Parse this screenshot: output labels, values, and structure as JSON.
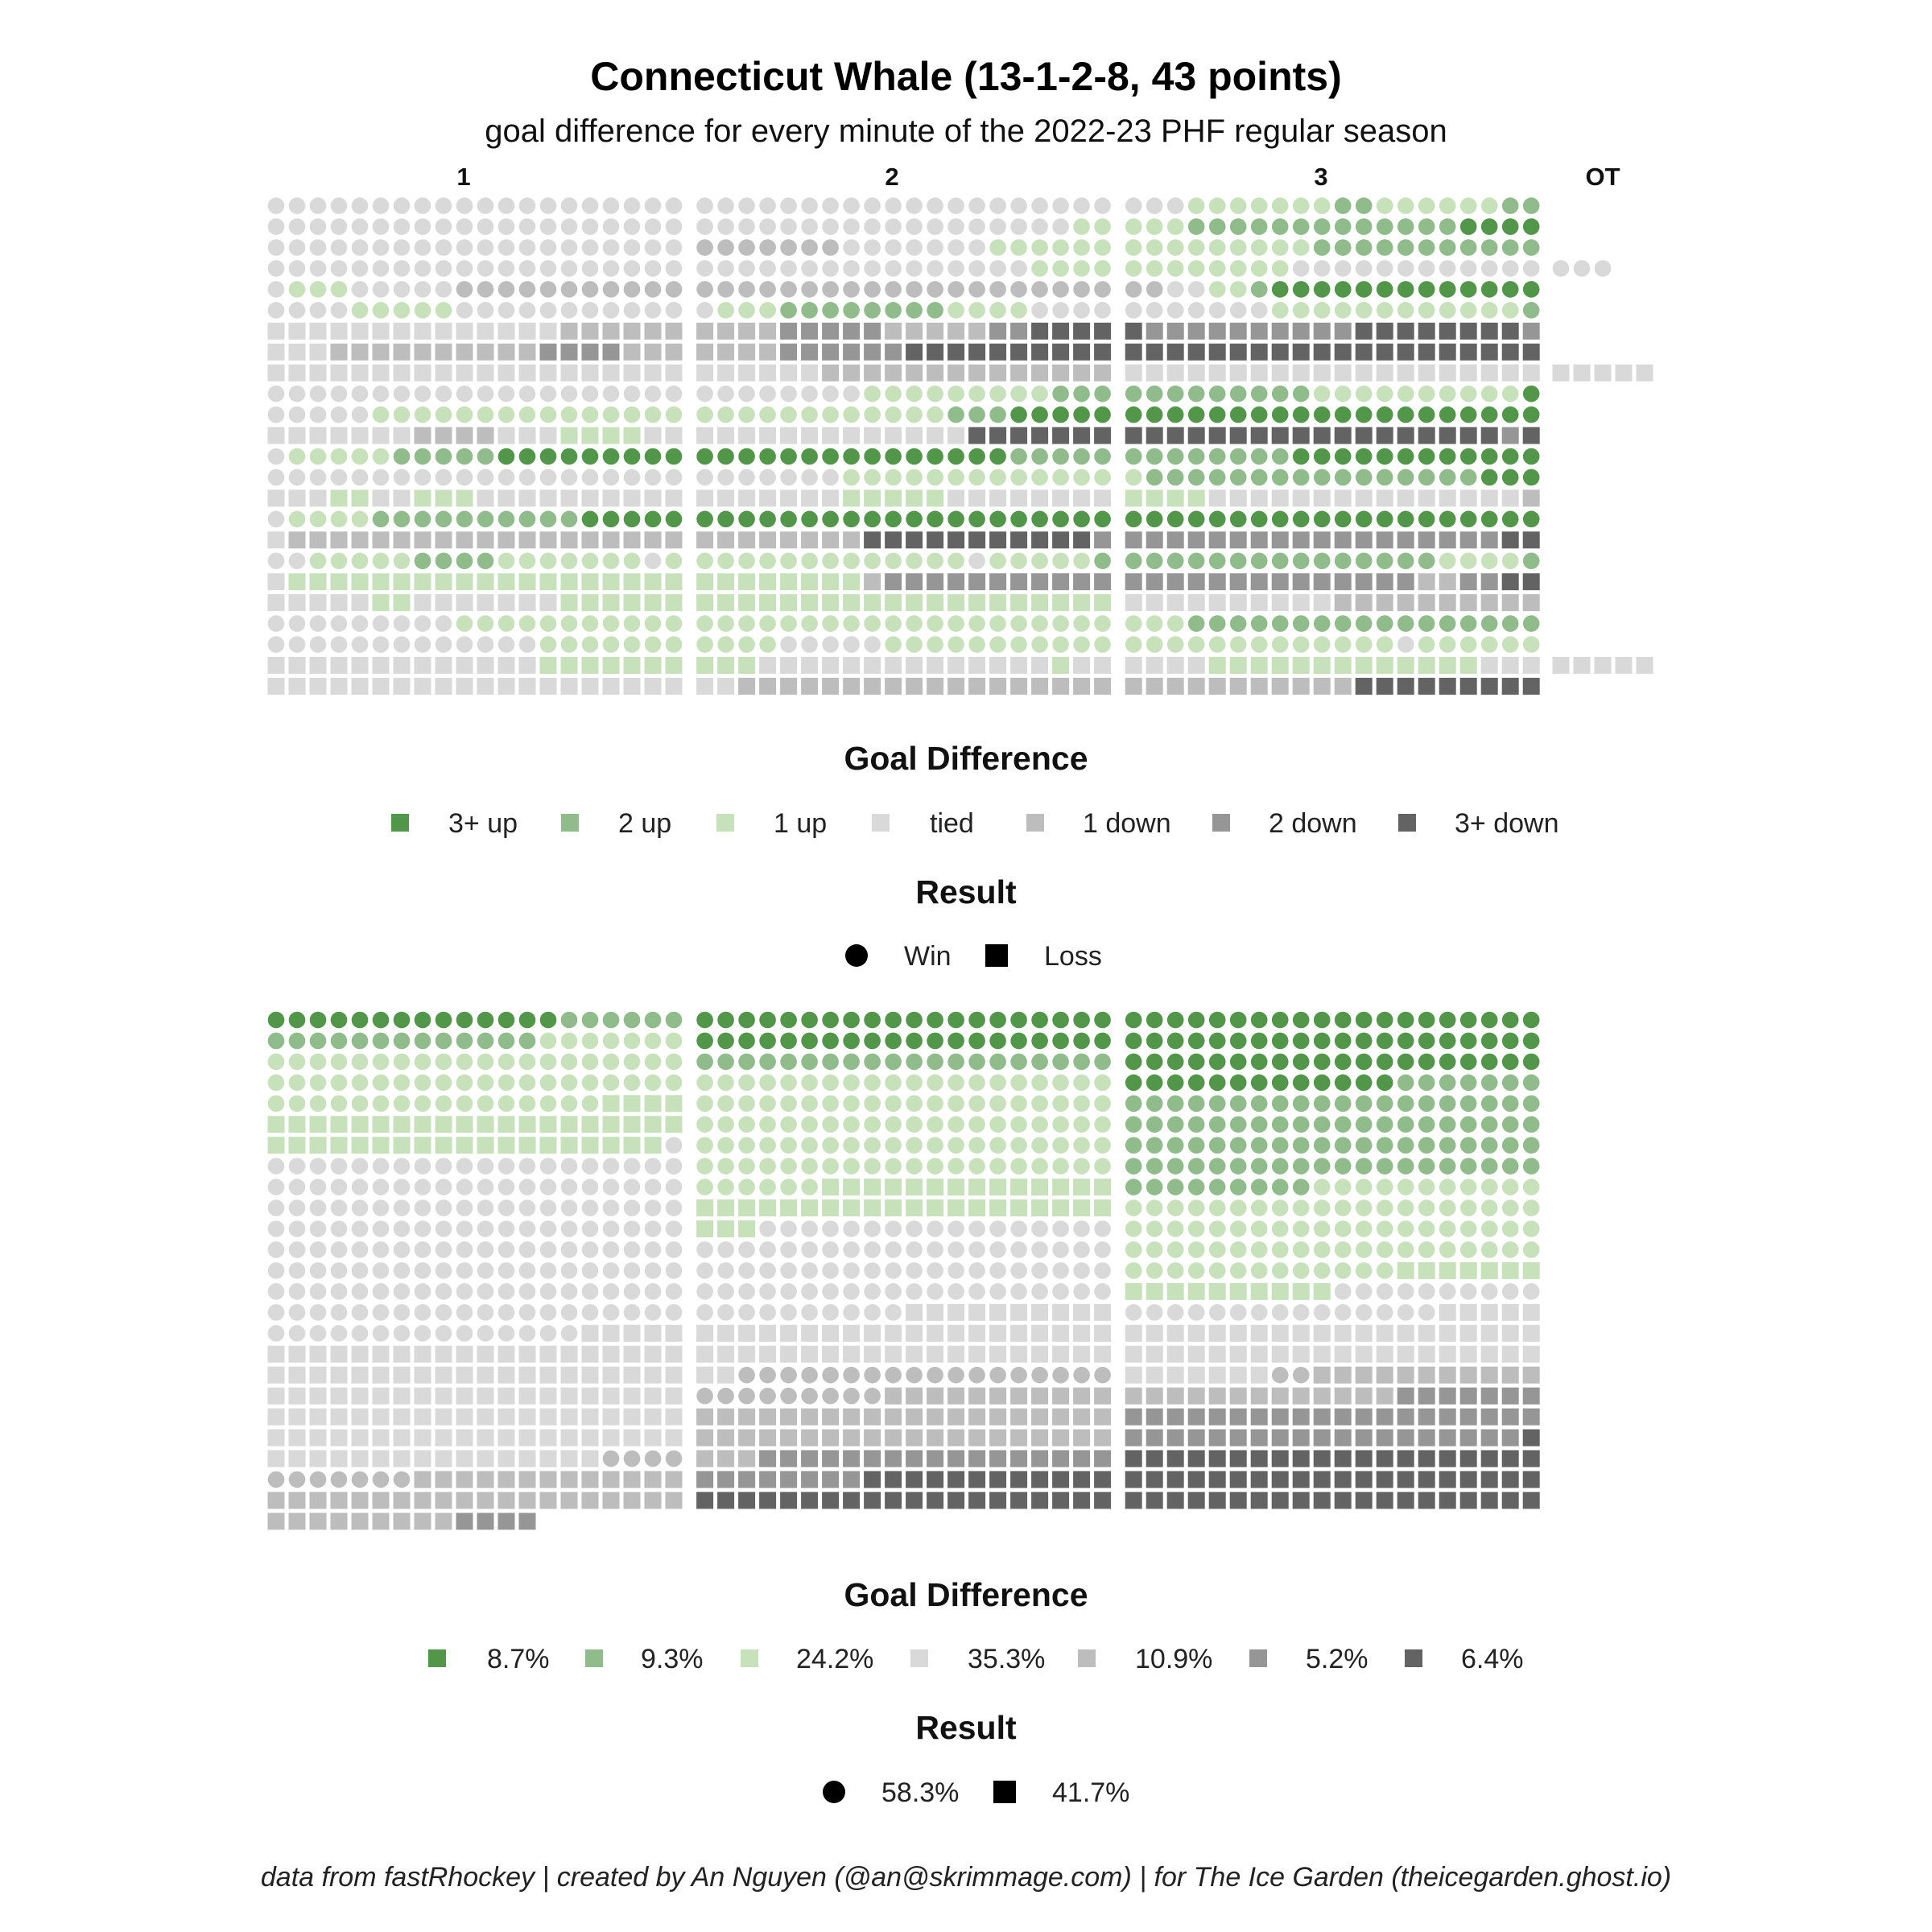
{
  "chart_data": {
    "type": "waffle",
    "title": "Connecticut Whale (13-1-2-8, 43 points)",
    "subtitle": "goal difference for every minute of the 2022-23 PHF regular season",
    "periods": [
      "1",
      "2",
      "3",
      "OT"
    ],
    "state_codes": {
      "A": "3+ up",
      "B": "2 up",
      "C": "1 up",
      "T": "tied",
      "d": "1 down",
      "e": "2 down",
      "f": "3+ down"
    },
    "colors": {
      "A": "#519649",
      "B": "#8fbc8a",
      "C": "#c7e1bb",
      "T": "#d9d9d9",
      "d": "#bdbdbd",
      "e": "#969696",
      "f": "#636363"
    },
    "games": [
      {
        "result": "W",
        "p1": "T20",
        "p2": "T20",
        "p3": "T3 C7 B2 C6 B2",
        "ot": ""
      },
      {
        "result": "W",
        "p1": "T20",
        "p2": "T18 C2",
        "p3": "C3 B13 A4",
        "ot": ""
      },
      {
        "result": "W",
        "p1": "T20",
        "p2": "d7 T7 C6",
        "p3": "C9 B11",
        "ot": ""
      },
      {
        "result": "W",
        "p1": "T20",
        "p2": "T16 C4",
        "p3": "C8 T12",
        "ot": "T3"
      },
      {
        "result": "W",
        "p1": "T1 C3 T5 d11",
        "p2": "d20",
        "p3": "d2 T2 C2 B1 A13",
        "ot": ""
      },
      {
        "result": "W",
        "p1": "T4 C5 T11",
        "p2": "T1 C3 B8 C4 T4",
        "p3": "T7 C12 B1",
        "ot": ""
      },
      {
        "result": "L",
        "p1": "T14 d6",
        "p2": "d4 e5 d5 e2 f4",
        "p3": "f1 e10 f8 e1",
        "ot": ""
      },
      {
        "result": "L",
        "p1": "T3 d10 e4 d3",
        "p2": "d4 e6 f10",
        "p3": "f20",
        "ot": ""
      },
      {
        "result": "L",
        "p1": "T20",
        "p2": "T6 d14",
        "p3": "T20",
        "ot": "T5"
      },
      {
        "result": "W",
        "p1": "T20",
        "p2": "T8 C9 B3",
        "p3": "B9 C10 A1",
        "ot": ""
      },
      {
        "result": "W",
        "p1": "T5 C15",
        "p2": "C12 B3 A5",
        "p3": "A20",
        "ot": ""
      },
      {
        "result": "L",
        "p1": "T7 d4 T3 C4 T2",
        "p2": "T13 f7",
        "p3": "f18 e1 f1",
        "ot": ""
      },
      {
        "result": "W",
        "p1": "T1 C5 B5 A9",
        "p2": "A15 B5",
        "p3": "B8 A12",
        "ot": ""
      },
      {
        "result": "W",
        "p1": "T20",
        "p2": "T7 C13",
        "p3": "C1 B16 A3",
        "ot": ""
      },
      {
        "result": "L",
        "p1": "T3 C2 T2 C3 T10",
        "p2": "T7 C5 T8",
        "p3": "C4 T15 d1",
        "ot": ""
      },
      {
        "result": "W",
        "p1": "T1 C4 B10 A5",
        "p2": "A20",
        "p3": "A20",
        "ot": ""
      },
      {
        "result": "L",
        "p1": "T1 d19",
        "p2": "d8 f11 e1",
        "p3": "e18 f2",
        "ot": ""
      },
      {
        "result": "W",
        "p1": "T2 C5 B4 C7 T1 C1",
        "p2": "C13 T1 C5 B1",
        "p3": "B15 C4 B1",
        "ot": ""
      },
      {
        "result": "L",
        "p1": "T1 C19",
        "p2": "C8 d1 e11",
        "p3": "e14 d2 e2 f2",
        "ot": ""
      },
      {
        "result": "L",
        "p1": "T5 C2 T7 C6",
        "p2": "C20",
        "p3": "T10 d10",
        "ot": ""
      },
      {
        "result": "W",
        "p1": "T9 C11",
        "p2": "C20",
        "p3": "C3 B17",
        "ot": ""
      },
      {
        "result": "W",
        "p1": "T13 C7",
        "p2": "C4 T5 C11",
        "p3": "C13 T1 C6",
        "ot": ""
      },
      {
        "result": "L",
        "p1": "T13 C7",
        "p2": "C3 T14 C1 T2",
        "p3": "T4 C13 T3",
        "ot": "T5"
      },
      {
        "result": "L",
        "p1": "T20",
        "p2": "T2 d18",
        "p3": "d11 f9",
        "ot": ""
      }
    ],
    "legend1": {
      "title": "Goal Difference",
      "items": [
        "3+ up",
        "2 up",
        "1 up",
        "tied",
        "1 down",
        "2 down",
        "3+ down"
      ],
      "result_title": "Result",
      "result_items": [
        "Win",
        "Loss"
      ]
    },
    "legend2": {
      "title": "Goal Difference",
      "percentages": [
        "8.7%",
        "9.3%",
        "24.2%",
        "35.3%",
        "10.9%",
        "5.2%",
        "6.4%"
      ],
      "result_title": "Result",
      "result_percentages": [
        "58.3%",
        "41.7%"
      ]
    },
    "caption": "data from fastRhockey | created by An Nguyen (@an@skrimmage.com) | for The Ice Garden (theicegarden.ghost.io)"
  }
}
